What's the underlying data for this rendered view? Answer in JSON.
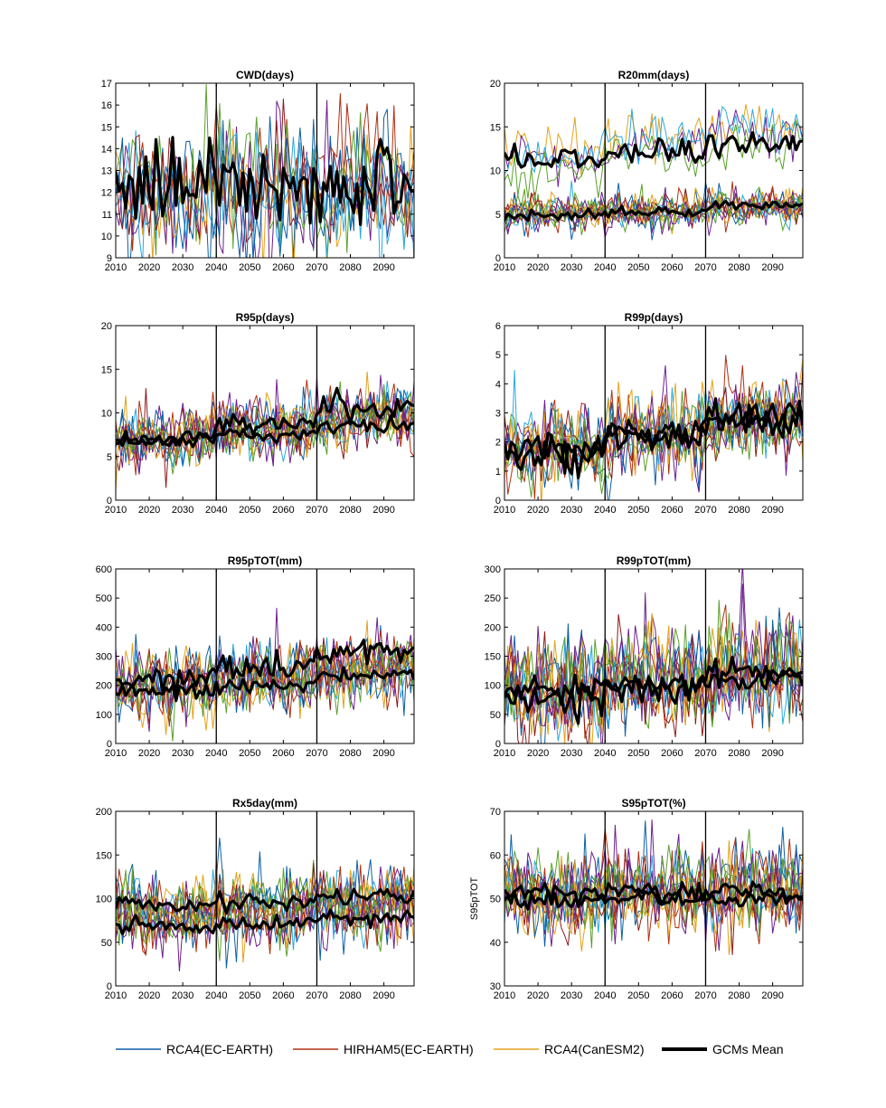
{
  "colors": {
    "RCA4(EC-EARTH)": "#0b5fa5",
    "HIRHAM5(EC-EARTH)": "#b03010",
    "RCA4(CanESM2)": "#e3a21a",
    "GCMs Mean": "#000000",
    "extra": [
      "#6d1f8e",
      "#5aa12a",
      "#2aa9df",
      "#8b1a1a"
    ]
  },
  "legend": {
    "placement": "bottom",
    "entries": [
      "RCA4(EC-EARTH)",
      "HIRHAM5(EC-EARTH)",
      "RCA4(CanESM2)",
      "GCMs Mean"
    ]
  },
  "chart_data": [
    {
      "type": "line",
      "title": "CWD(days)",
      "ylabel": "",
      "xlim": [
        2010,
        2099
      ],
      "ylim": [
        9,
        17
      ],
      "yticks": [
        9,
        10,
        11,
        12,
        13,
        14,
        15,
        16,
        17
      ],
      "xticks": [
        2010,
        2020,
        2030,
        2040,
        2050,
        2060,
        2070,
        2080,
        2090
      ],
      "period_lines": [
        2040,
        2070
      ],
      "members": {
        "count": 8,
        "base": [
          12,
          12,
          12
        ],
        "spread": 1.6,
        "trend": 0
      },
      "mean_series": [
        {
          "name": "GCMs Mean",
          "start": [
            12,
            12,
            12.4
          ],
          "values_by_period": [
            12.2,
            12.1,
            12.5
          ],
          "noise": 0.9
        }
      ]
    },
    {
      "type": "line",
      "title": "R20mm(days)",
      "ylabel": "",
      "xlim": [
        2010,
        2099
      ],
      "ylim": [
        0,
        20
      ],
      "yticks": [
        0,
        5,
        10,
        15,
        20
      ],
      "xticks": [
        2010,
        2020,
        2030,
        2040,
        2050,
        2060,
        2070,
        2080,
        2090
      ],
      "period_lines": [
        2040,
        2070
      ],
      "members": {
        "count": 12,
        "base": [
          5,
          5.2,
          5.8
        ],
        "spread": 1.0,
        "trend": 0,
        "upper_group": {
          "count": 4,
          "base": [
            11,
            12.5,
            14
          ],
          "spread": 2.5
        }
      },
      "mean_series": [
        {
          "name": "GCMs Mean",
          "values_by_period": [
            11.5,
            12.0,
            13.2
          ],
          "noise": 0.8
        },
        {
          "name": "GCMs Mean",
          "values_by_period": [
            4.8,
            5.2,
            6.0
          ],
          "noise": 0.3
        }
      ]
    },
    {
      "type": "line",
      "title": "R95p(days)",
      "ylabel": "",
      "xlim": [
        2010,
        2099
      ],
      "ylim": [
        0,
        20
      ],
      "yticks": [
        0,
        5,
        10,
        15,
        20
      ],
      "xticks": [
        2010,
        2020,
        2030,
        2040,
        2050,
        2060,
        2070,
        2080,
        2090
      ],
      "period_lines": [
        2040,
        2070
      ],
      "members": {
        "count": 12,
        "base": [
          7,
          8,
          9
        ],
        "spread": 1.8,
        "trend": 0.02
      },
      "mean_series": [
        {
          "name": "GCMs Mean",
          "values_by_period": [
            7.0,
            8.8,
            10.8
          ],
          "noise": 0.7
        },
        {
          "name": "GCMs Mean",
          "values_by_period": [
            6.8,
            7.6,
            8.5
          ],
          "noise": 0.4
        }
      ]
    },
    {
      "type": "line",
      "title": "R99p(days)",
      "ylabel": "",
      "xlim": [
        2010,
        2099
      ],
      "ylim": [
        0,
        6
      ],
      "yticks": [
        0,
        1,
        2,
        3,
        4,
        5,
        6
      ],
      "xticks": [
        2010,
        2020,
        2030,
        2040,
        2050,
        2060,
        2070,
        2080,
        2090
      ],
      "period_lines": [
        2040,
        2070
      ],
      "members": {
        "count": 12,
        "base": [
          1.8,
          2.2,
          2.7
        ],
        "spread": 0.7,
        "trend": 0.005
      },
      "mean_series": [
        {
          "name": "GCMs Mean",
          "values_by_period": [
            1.8,
            2.3,
            2.9
          ],
          "noise": 0.3
        },
        {
          "name": "GCMs Mean",
          "values_by_period": [
            1.6,
            2.1,
            2.6
          ],
          "noise": 0.25
        }
      ]
    },
    {
      "type": "line",
      "title": "R95pTOT(mm)",
      "ylabel": "",
      "xlim": [
        2010,
        2099
      ],
      "ylim": [
        0,
        600
      ],
      "yticks": [
        0,
        100,
        200,
        300,
        400,
        500,
        600
      ],
      "xticks": [
        2010,
        2020,
        2030,
        2040,
        2050,
        2060,
        2070,
        2080,
        2090
      ],
      "period_lines": [
        2040,
        2070
      ],
      "members": {
        "count": 12,
        "base": [
          200,
          220,
          250
        ],
        "spread": 60,
        "trend": 0.5
      },
      "mean_series": [
        {
          "name": "GCMs Mean",
          "values_by_period": [
            225,
            260,
            320
          ],
          "noise": 22
        },
        {
          "name": "GCMs Mean",
          "values_by_period": [
            180,
            200,
            235
          ],
          "noise": 12
        }
      ]
    },
    {
      "type": "line",
      "title": "R99pTOT(mm)",
      "ylabel": "",
      "xlim": [
        2010,
        2099
      ],
      "ylim": [
        0,
        300
      ],
      "yticks": [
        0,
        50,
        100,
        150,
        200,
        250,
        300
      ],
      "xticks": [
        2010,
        2020,
        2030,
        2040,
        2050,
        2060,
        2070,
        2080,
        2090
      ],
      "period_lines": [
        2040,
        2070
      ],
      "members": {
        "count": 12,
        "base": [
          90,
          105,
          120
        ],
        "spread": 45,
        "trend": 0.2
      },
      "mean_series": [
        {
          "name": "GCMs Mean",
          "values_by_period": [
            78,
            95,
            125
          ],
          "noise": 14
        },
        {
          "name": "GCMs Mean",
          "values_by_period": [
            95,
            100,
            110
          ],
          "noise": 8
        }
      ]
    },
    {
      "type": "line",
      "title": "Rx5day(mm)",
      "ylabel": "",
      "xlim": [
        2010,
        2099
      ],
      "ylim": [
        0,
        200
      ],
      "yticks": [
        0,
        50,
        100,
        150,
        200
      ],
      "xticks": [
        2010,
        2020,
        2030,
        2040,
        2050,
        2060,
        2070,
        2080,
        2090
      ],
      "period_lines": [
        2040,
        2070
      ],
      "members": {
        "count": 12,
        "base": [
          78,
          84,
          90
        ],
        "spread": 22,
        "trend": 0.1
      },
      "mean_series": [
        {
          "name": "GCMs Mean",
          "values_by_period": [
            92,
            97,
            103
          ],
          "noise": 5
        },
        {
          "name": "GCMs Mean",
          "values_by_period": [
            68,
            72,
            78
          ],
          "noise": 4
        }
      ]
    },
    {
      "type": "line",
      "title": "S95pTOT(%)",
      "ylabel": "S95pTOT",
      "xlim": [
        2010,
        2099
      ],
      "ylim": [
        30,
        70
      ],
      "yticks": [
        30,
        40,
        50,
        60,
        70
      ],
      "xticks": [
        2010,
        2020,
        2030,
        2040,
        2050,
        2060,
        2070,
        2080,
        2090
      ],
      "period_lines": [
        2040,
        2070
      ],
      "members": {
        "count": 12,
        "base": [
          51,
          52,
          52
        ],
        "spread": 5,
        "trend": 0
      },
      "mean_series": [
        {
          "name": "GCMs Mean",
          "values_by_period": [
            51.5,
            51.5,
            51.5
          ],
          "noise": 1.2
        },
        {
          "name": "GCMs Mean",
          "values_by_period": [
            49.5,
            49.8,
            49.8
          ],
          "noise": 1.0
        }
      ]
    }
  ]
}
